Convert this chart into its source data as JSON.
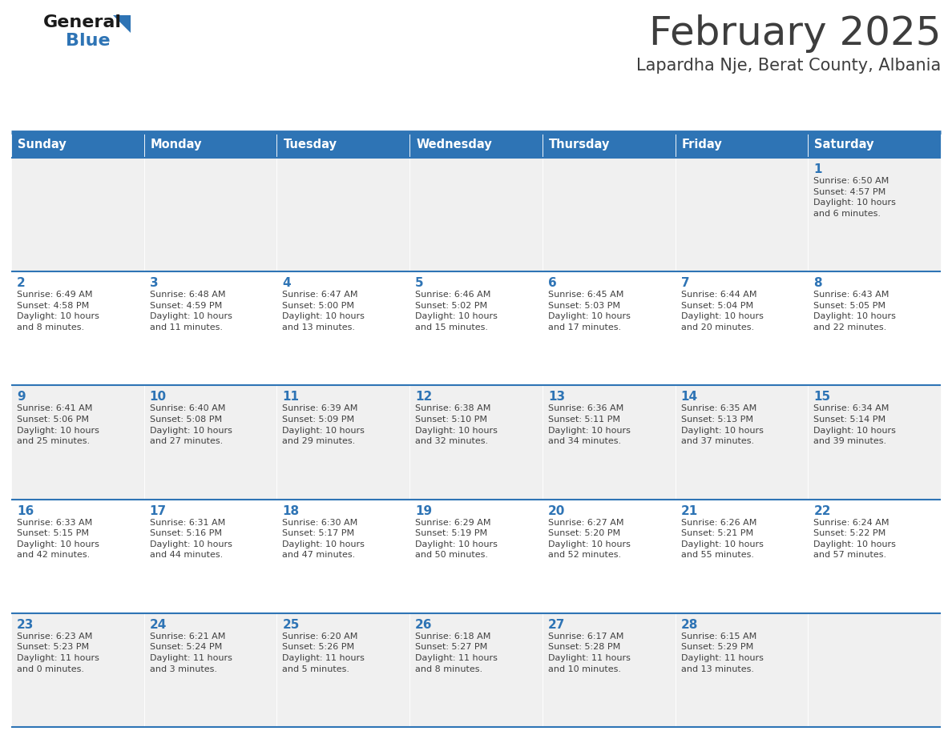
{
  "title": "February 2025",
  "subtitle": "Lapardha Nje, Berat County, Albania",
  "header_bg": "#2E74B5",
  "header_text_color": "#FFFFFF",
  "day_headers": [
    "Sunday",
    "Monday",
    "Tuesday",
    "Wednesday",
    "Thursday",
    "Friday",
    "Saturday"
  ],
  "row_bg_even": "#F0F0F0",
  "row_bg_odd": "#FFFFFF",
  "separator_color": "#2E74B5",
  "day_number_color": "#2E74B5",
  "cell_text_color": "#404040",
  "title_color": "#3D3D3D",
  "subtitle_color": "#3D3D3D",
  "logo_general_color": "#1A1A1A",
  "logo_blue_color": "#2E74B5",
  "calendar": [
    [
      {
        "day": null,
        "info": null
      },
      {
        "day": null,
        "info": null
      },
      {
        "day": null,
        "info": null
      },
      {
        "day": null,
        "info": null
      },
      {
        "day": null,
        "info": null
      },
      {
        "day": null,
        "info": null
      },
      {
        "day": 1,
        "info": "Sunrise: 6:50 AM\nSunset: 4:57 PM\nDaylight: 10 hours\nand 6 minutes."
      }
    ],
    [
      {
        "day": 2,
        "info": "Sunrise: 6:49 AM\nSunset: 4:58 PM\nDaylight: 10 hours\nand 8 minutes."
      },
      {
        "day": 3,
        "info": "Sunrise: 6:48 AM\nSunset: 4:59 PM\nDaylight: 10 hours\nand 11 minutes."
      },
      {
        "day": 4,
        "info": "Sunrise: 6:47 AM\nSunset: 5:00 PM\nDaylight: 10 hours\nand 13 minutes."
      },
      {
        "day": 5,
        "info": "Sunrise: 6:46 AM\nSunset: 5:02 PM\nDaylight: 10 hours\nand 15 minutes."
      },
      {
        "day": 6,
        "info": "Sunrise: 6:45 AM\nSunset: 5:03 PM\nDaylight: 10 hours\nand 17 minutes."
      },
      {
        "day": 7,
        "info": "Sunrise: 6:44 AM\nSunset: 5:04 PM\nDaylight: 10 hours\nand 20 minutes."
      },
      {
        "day": 8,
        "info": "Sunrise: 6:43 AM\nSunset: 5:05 PM\nDaylight: 10 hours\nand 22 minutes."
      }
    ],
    [
      {
        "day": 9,
        "info": "Sunrise: 6:41 AM\nSunset: 5:06 PM\nDaylight: 10 hours\nand 25 minutes."
      },
      {
        "day": 10,
        "info": "Sunrise: 6:40 AM\nSunset: 5:08 PM\nDaylight: 10 hours\nand 27 minutes."
      },
      {
        "day": 11,
        "info": "Sunrise: 6:39 AM\nSunset: 5:09 PM\nDaylight: 10 hours\nand 29 minutes."
      },
      {
        "day": 12,
        "info": "Sunrise: 6:38 AM\nSunset: 5:10 PM\nDaylight: 10 hours\nand 32 minutes."
      },
      {
        "day": 13,
        "info": "Sunrise: 6:36 AM\nSunset: 5:11 PM\nDaylight: 10 hours\nand 34 minutes."
      },
      {
        "day": 14,
        "info": "Sunrise: 6:35 AM\nSunset: 5:13 PM\nDaylight: 10 hours\nand 37 minutes."
      },
      {
        "day": 15,
        "info": "Sunrise: 6:34 AM\nSunset: 5:14 PM\nDaylight: 10 hours\nand 39 minutes."
      }
    ],
    [
      {
        "day": 16,
        "info": "Sunrise: 6:33 AM\nSunset: 5:15 PM\nDaylight: 10 hours\nand 42 minutes."
      },
      {
        "day": 17,
        "info": "Sunrise: 6:31 AM\nSunset: 5:16 PM\nDaylight: 10 hours\nand 44 minutes."
      },
      {
        "day": 18,
        "info": "Sunrise: 6:30 AM\nSunset: 5:17 PM\nDaylight: 10 hours\nand 47 minutes."
      },
      {
        "day": 19,
        "info": "Sunrise: 6:29 AM\nSunset: 5:19 PM\nDaylight: 10 hours\nand 50 minutes."
      },
      {
        "day": 20,
        "info": "Sunrise: 6:27 AM\nSunset: 5:20 PM\nDaylight: 10 hours\nand 52 minutes."
      },
      {
        "day": 21,
        "info": "Sunrise: 6:26 AM\nSunset: 5:21 PM\nDaylight: 10 hours\nand 55 minutes."
      },
      {
        "day": 22,
        "info": "Sunrise: 6:24 AM\nSunset: 5:22 PM\nDaylight: 10 hours\nand 57 minutes."
      }
    ],
    [
      {
        "day": 23,
        "info": "Sunrise: 6:23 AM\nSunset: 5:23 PM\nDaylight: 11 hours\nand 0 minutes."
      },
      {
        "day": 24,
        "info": "Sunrise: 6:21 AM\nSunset: 5:24 PM\nDaylight: 11 hours\nand 3 minutes."
      },
      {
        "day": 25,
        "info": "Sunrise: 6:20 AM\nSunset: 5:26 PM\nDaylight: 11 hours\nand 5 minutes."
      },
      {
        "day": 26,
        "info": "Sunrise: 6:18 AM\nSunset: 5:27 PM\nDaylight: 11 hours\nand 8 minutes."
      },
      {
        "day": 27,
        "info": "Sunrise: 6:17 AM\nSunset: 5:28 PM\nDaylight: 11 hours\nand 10 minutes."
      },
      {
        "day": 28,
        "info": "Sunrise: 6:15 AM\nSunset: 5:29 PM\nDaylight: 11 hours\nand 13 minutes."
      },
      {
        "day": null,
        "info": null
      }
    ]
  ]
}
